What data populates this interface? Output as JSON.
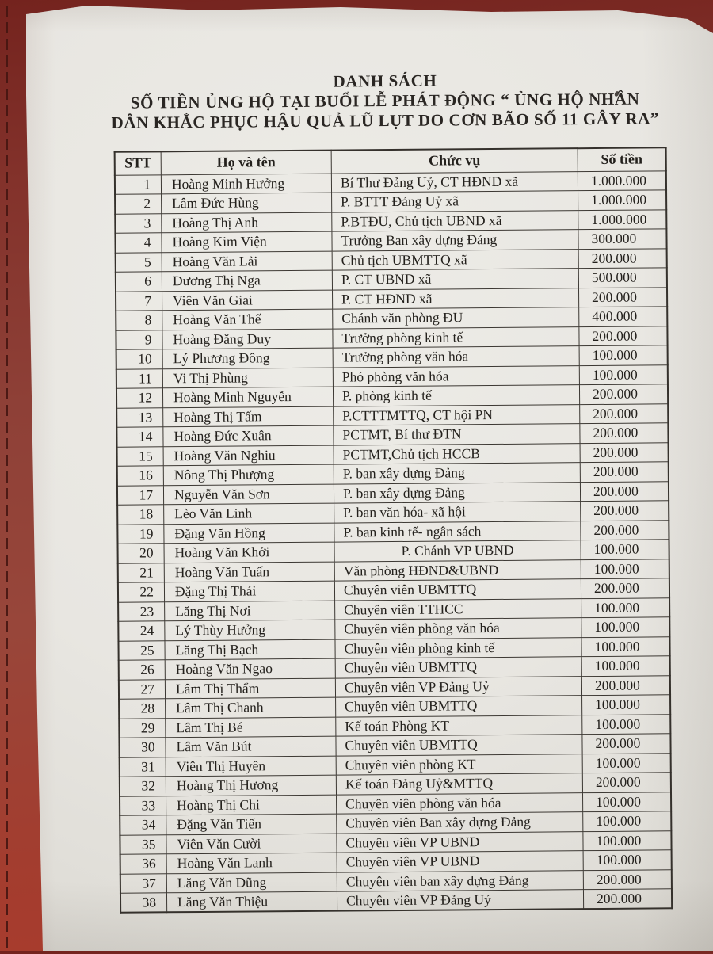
{
  "title": {
    "line1": "DANH SÁCH",
    "line2": "SỐ TIỀN ỦNG HỘ TẠI BUỔI LỄ PHÁT ĐỘNG “ ỦNG HỘ NHÂN",
    "line3": "DÂN KHẮC PHỤC HẬU QUẢ LŨ LỤT DO CƠN BÃO SỐ 11 GÂY RA”"
  },
  "table": {
    "headers": [
      "STT",
      "Họ và tên",
      "Chức vụ",
      "Số tiền"
    ],
    "rows": [
      {
        "stt": "1",
        "name": "Hoàng Minh Hưởng",
        "position": "Bí Thư Đảng Uỷ, CT HĐND xã",
        "amount": "1.000.000"
      },
      {
        "stt": "2",
        "name": "Lâm Đức Hùng",
        "position": "P. BTTT Đảng Uỷ xã",
        "amount": "1.000.000"
      },
      {
        "stt": "3",
        "name": "Hoàng Thị Anh",
        "position": "P.BTĐU, Chủ tịch UBND xã",
        "amount": "1.000.000"
      },
      {
        "stt": "4",
        "name": "Hoàng Kim Viện",
        "position": "Trưởng Ban xây dựng Đảng",
        "amount": "300.000"
      },
      {
        "stt": "5",
        "name": "Hoàng Văn Lải",
        "position": "Chủ tịch UBMTTQ xã",
        "amount": "200.000"
      },
      {
        "stt": "6",
        "name": "Dương Thị Nga",
        "position": "P. CT UBND xã",
        "amount": "500.000"
      },
      {
        "stt": "7",
        "name": "Viên Văn Giai",
        "position": "P. CT HĐND xã",
        "amount": "200.000"
      },
      {
        "stt": "8",
        "name": "Hoàng Văn Thế",
        "position": "Chánh văn phòng ĐU",
        "amount": "400.000"
      },
      {
        "stt": "9",
        "name": "Hoàng Đăng Duy",
        "position": "Trưởng phòng kinh tế",
        "amount": "200.000"
      },
      {
        "stt": "10",
        "name": "Lý Phương Đông",
        "position": "Trưởng phòng văn hóa",
        "amount": "100.000"
      },
      {
        "stt": "11",
        "name": "Vi Thị Phùng",
        "position": "Phó phòng văn hóa",
        "amount": "100.000"
      },
      {
        "stt": "12",
        "name": "Hoàng Minh Nguyễn",
        "position": "P. phòng kinh tế",
        "amount": "200.000"
      },
      {
        "stt": "13",
        "name": "Hoàng Thị Tấm",
        "position": "P.CTTTMTTQ, CT hội PN",
        "amount": "200.000"
      },
      {
        "stt": "14",
        "name": "Hoàng Đức Xuân",
        "position": "PCTMT, Bí thư ĐTN",
        "amount": "200.000"
      },
      {
        "stt": "15",
        "name": "Hoàng Văn Nghiu",
        "position": "PCTMT,Chủ tịch HCCB",
        "amount": "200.000"
      },
      {
        "stt": "16",
        "name": "Nông Thị Phượng",
        "position": "P. ban xây dựng Đảng",
        "amount": "200.000"
      },
      {
        "stt": "17",
        "name": "Nguyễn Văn Sơn",
        "position": "P. ban xây dựng Đảng",
        "amount": "200.000"
      },
      {
        "stt": "18",
        "name": "Lèo Văn Linh",
        "position": "P. ban văn hóa- xã hội",
        "amount": "200.000"
      },
      {
        "stt": "19",
        "name": "Đặng Văn Hồng",
        "position": "P. ban kinh tế- ngân sách",
        "amount": "200.000"
      },
      {
        "stt": "20",
        "name": "Hoàng Văn Khởi",
        "position": "P. Chánh VP UBND",
        "position_align": "center",
        "amount": "100.000"
      },
      {
        "stt": "21",
        "name": "Hoàng Văn Tuấn",
        "position": "Văn phòng HĐND&UBND",
        "amount": "100.000"
      },
      {
        "stt": "22",
        "name": "Đặng Thị Thái",
        "position": "Chuyên viên  UBMTTQ",
        "amount": "200.000"
      },
      {
        "stt": "23",
        "name": "Lăng Thị Nơi",
        "position": "Chuyên viên TTHCC",
        "amount": "100.000"
      },
      {
        "stt": "24",
        "name": "Lý Thùy Hưởng",
        "position": "Chuyên viên phòng văn hóa",
        "amount": "100.000"
      },
      {
        "stt": "25",
        "name": "Lăng Thị Bạch",
        "position": "Chuyên viên phòng kinh tế",
        "amount": "100.000"
      },
      {
        "stt": "26",
        "name": "Hoàng Văn Ngao",
        "position": "Chuyên viên UBMTTQ",
        "amount": "100.000"
      },
      {
        "stt": "27",
        "name": "Lâm Thị Thẩm",
        "position": "Chuyên viên VP Đảng Uỷ",
        "amount": "200.000"
      },
      {
        "stt": "28",
        "name": "Lâm Thị Chanh",
        "position": "Chuyên viên UBMTTQ",
        "amount": "100.000"
      },
      {
        "stt": "29",
        "name": "Lâm Thị Bé",
        "position": "Kế toán Phòng KT",
        "amount": "100.000"
      },
      {
        "stt": "30",
        "name": "Lâm Văn Bút",
        "position": "Chuyên viên UBMTTQ",
        "amount": "200.000"
      },
      {
        "stt": "31",
        "name": "Viên Thị Huyên",
        "position": "Chuyên viên phòng KT",
        "amount": "100.000"
      },
      {
        "stt": "32",
        "name": "Hoàng Thị Hương",
        "position": "Kế toán Đảng Uỷ&MTTQ",
        "amount": "200.000"
      },
      {
        "stt": "33",
        "name": "Hoàng Thị Chi",
        "position": "Chuyên viên phòng văn hóa",
        "amount": "100.000"
      },
      {
        "stt": "34",
        "name": "Đặng Văn Tiến",
        "position": "Chuyên viên Ban xây dựng Đảng",
        "amount": "100.000"
      },
      {
        "stt": "35",
        "name": "Viên Văn Cười",
        "position": "Chuyên viên VP UBND",
        "amount": "100.000"
      },
      {
        "stt": "36",
        "name": "Hoàng Văn Lanh",
        "position": "Chuyên viên VP UBND",
        "amount": "100.000"
      },
      {
        "stt": "37",
        "name": "Lăng Văn Dũng",
        "position": "Chuyên viên ban xây dựng Đảng",
        "amount": "200.000"
      },
      {
        "stt": "38",
        "name": "Lăng Văn Thiệu",
        "position": "Chuyên viên VP Đảng Uỷ",
        "amount": "200.000"
      }
    ]
  },
  "colors": {
    "leather": "#8f3a30",
    "leather_dark": "#74231e",
    "stitch": "#451511",
    "paper": "#e8e6e1",
    "ink": "#23201c",
    "table_border": "#3c3833"
  }
}
